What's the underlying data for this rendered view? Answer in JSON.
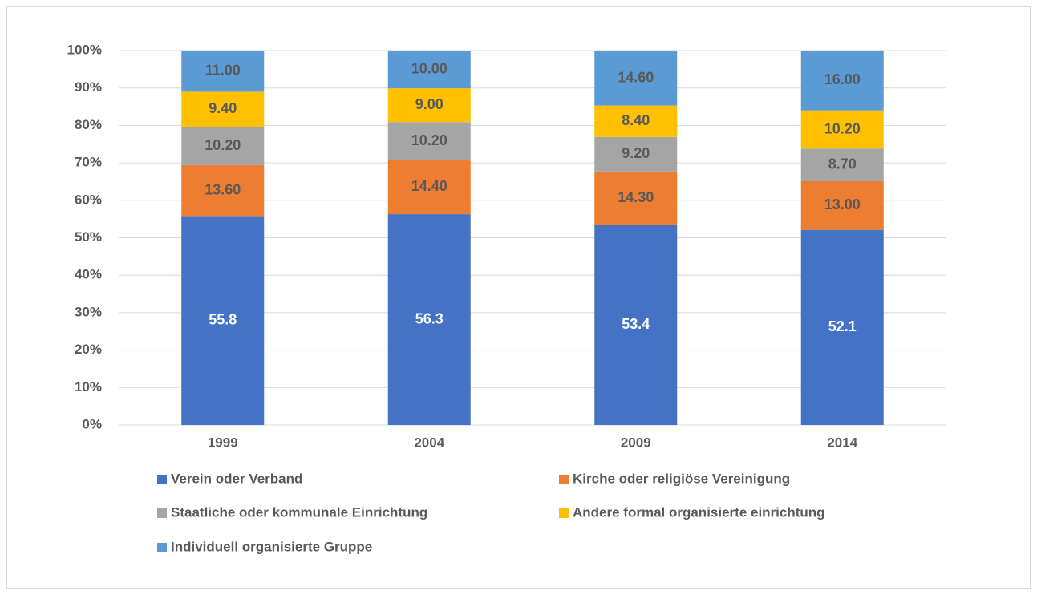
{
  "chart_data": {
    "type": "stacked_bar",
    "categories": [
      "1999",
      "2004",
      "2009",
      "2014"
    ],
    "series": [
      {
        "name": "Verein oder Verband",
        "color": "#4472c4",
        "values": [
          55.8,
          56.3,
          53.4,
          52.1
        ]
      },
      {
        "name": "Kirche oder religiöse Vereinigung",
        "color": "#ed7d31",
        "values": [
          13.6,
          14.4,
          14.3,
          13.0
        ],
        "value_labels": [
          "13.60",
          "14.40",
          "14.30",
          "13.00"
        ]
      },
      {
        "name": "Staatliche oder kommunale Einrichtung",
        "color": "#a5a5a5",
        "values": [
          10.2,
          10.2,
          9.2,
          8.7
        ],
        "value_labels": [
          "10.20",
          "10.20",
          "9.20",
          "8.70"
        ]
      },
      {
        "name": "Andere formal organisierte einrichtung",
        "color": "#ffc000",
        "values": [
          9.4,
          9.0,
          8.4,
          10.2
        ],
        "value_labels": [
          "9.40",
          "9.00",
          "8.40",
          "10.20"
        ]
      },
      {
        "name": "Individuell organisierte Gruppe",
        "color": "#5b9bd5",
        "values": [
          11.0,
          10.0,
          14.6,
          16.0
        ],
        "value_labels": [
          "11.00",
          "10.00",
          "14.60",
          "16.00"
        ]
      }
    ],
    "ylim": [
      0,
      100
    ],
    "yticks": [
      {
        "value": 0,
        "label": "0%"
      },
      {
        "value": 10,
        "label": "10%"
      },
      {
        "value": 20,
        "label": "20%"
      },
      {
        "value": 30,
        "label": "30%"
      },
      {
        "value": 40,
        "label": "40%"
      },
      {
        "value": 50,
        "label": "50%"
      },
      {
        "value": 60,
        "label": "60%"
      },
      {
        "value": 70,
        "label": "70%"
      },
      {
        "value": 80,
        "label": "80%"
      },
      {
        "value": 90,
        "label": "90%"
      },
      {
        "value": 100,
        "label": "100%"
      }
    ],
    "grid": true,
    "legend": "bottom"
  }
}
